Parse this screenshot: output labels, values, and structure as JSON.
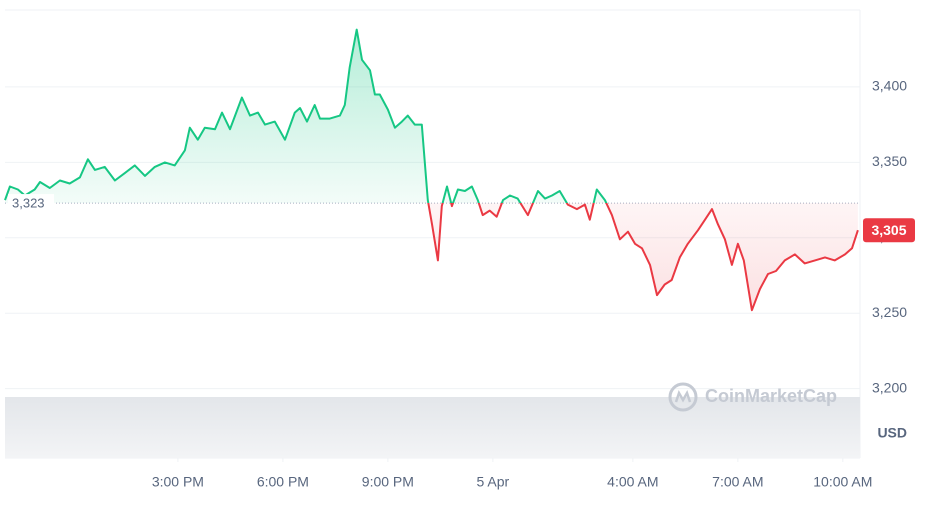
{
  "chart_data": {
    "type": "line",
    "up_color": "#16c784",
    "down_color": "#ea3943",
    "xlim": [
      10.06,
      34.49
    ],
    "ylim": [
      3154,
      3451
    ],
    "xticks": [
      {
        "value": 15,
        "label": "3:00 PM"
      },
      {
        "value": 18,
        "label": "6:00 PM"
      },
      {
        "value": 21,
        "label": "9:00 PM"
      },
      {
        "value": 24,
        "label": "5 Apr"
      },
      {
        "value": 28,
        "label": "4:00 AM"
      },
      {
        "value": 31,
        "label": "7:00 AM"
      },
      {
        "value": 34,
        "label": "10:00 AM"
      }
    ],
    "yticks": [
      {
        "value": 3200,
        "label": "3,200"
      },
      {
        "value": 3250,
        "label": "3,250"
      },
      {
        "value": 3300,
        "label": "3,300"
      },
      {
        "value": 3350,
        "label": "3,350"
      },
      {
        "value": 3400,
        "label": "3,400"
      }
    ],
    "baseline": {
      "value": 3323,
      "label": "3,323"
    },
    "last_price": {
      "value": 3305,
      "label": "3,305"
    },
    "unit": "USD",
    "watermark": "CoinMarketCap",
    "x": [
      10.06,
      10.2,
      10.43,
      10.63,
      10.91,
      11.06,
      11.34,
      11.63,
      11.91,
      12.2,
      12.43,
      12.63,
      12.91,
      13.2,
      13.49,
      13.77,
      14.06,
      14.34,
      14.63,
      14.91,
      15.2,
      15.34,
      15.57,
      15.77,
      16.06,
      16.26,
      16.49,
      16.83,
      17.06,
      17.29,
      17.49,
      17.77,
      18.06,
      18.34,
      18.49,
      18.69,
      18.91,
      19.06,
      19.34,
      19.63,
      19.77,
      19.91,
      20.11,
      20.26,
      20.49,
      20.63,
      20.77,
      21.0,
      21.2,
      21.4,
      21.57,
      21.77,
      21.97,
      22.14,
      22.26,
      22.43,
      22.54,
      22.69,
      22.83,
      23.0,
      23.2,
      23.4,
      23.57,
      23.71,
      23.91,
      24.11,
      24.29,
      24.49,
      24.71,
      25.0,
      25.29,
      25.49,
      25.69,
      25.91,
      26.14,
      26.4,
      26.63,
      26.77,
      26.97,
      27.2,
      27.4,
      27.63,
      27.86,
      28.06,
      28.26,
      28.49,
      28.69,
      28.91,
      29.11,
      29.34,
      29.57,
      29.86,
      30.06,
      30.26,
      30.43,
      30.63,
      30.83,
      31.0,
      31.17,
      31.4,
      31.63,
      31.86,
      32.09,
      32.34,
      32.63,
      32.91,
      33.2,
      33.49,
      33.77,
      34.06,
      34.26,
      34.43
    ],
    "values": [
      3325,
      3334,
      3332,
      3328,
      3332,
      3337,
      3333,
      3338,
      3336,
      3340,
      3352,
      3345,
      3347,
      3338,
      3343,
      3348,
      3341,
      3347,
      3350,
      3348,
      3358,
      3373,
      3365,
      3373,
      3372,
      3383,
      3372,
      3393,
      3381,
      3383,
      3375,
      3377,
      3365,
      3383,
      3386,
      3377,
      3388,
      3379,
      3379,
      3381,
      3388,
      3413,
      3438,
      3418,
      3411,
      3395,
      3395,
      3385,
      3373,
      3377,
      3381,
      3375,
      3375,
      3325,
      3309,
      3285,
      3321,
      3334,
      3321,
      3332,
      3331,
      3334,
      3325,
      3315,
      3318,
      3314,
      3325,
      3328,
      3326,
      3315,
      3331,
      3326,
      3328,
      3331,
      3322,
      3319,
      3322,
      3312,
      3332,
      3325,
      3315,
      3299,
      3304,
      3296,
      3293,
      3282,
      3262,
      3269,
      3272,
      3287,
      3296,
      3305,
      3312,
      3319,
      3309,
      3299,
      3282,
      3296,
      3285,
      3252,
      3266,
      3276,
      3278,
      3285,
      3289,
      3283,
      3285,
      3287,
      3285,
      3289,
      3293,
      3305
    ]
  }
}
